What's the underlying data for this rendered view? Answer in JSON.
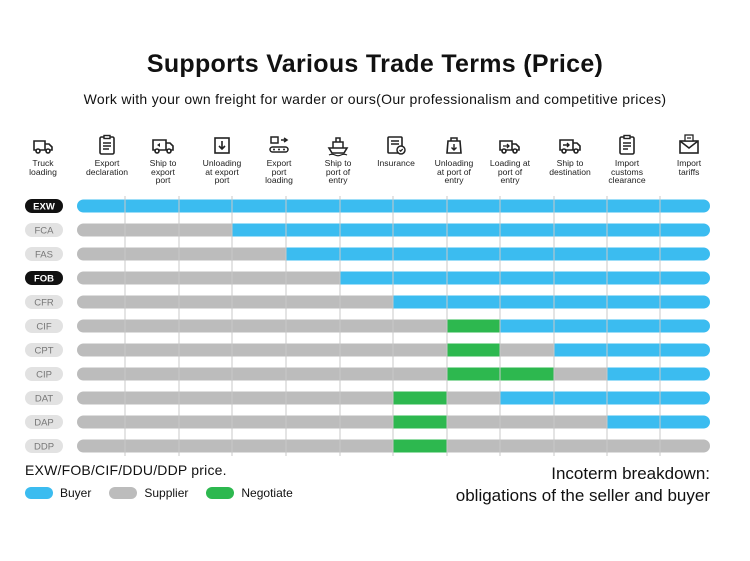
{
  "title": "Supports Various Trade Terms (Price)",
  "subtitle": "Work with your own freight for warder or ours(Our professionalism and competitive prices)",
  "colors": {
    "buyer": "#3bbcf0",
    "supplier": "#bcbcbc",
    "negotiate": "#2db84f",
    "tag_bg": "#e2e2e2",
    "tag_active": "#111111"
  },
  "stages": [
    {
      "icon": "truck-icon",
      "label": "Truck\nloading"
    },
    {
      "icon": "clipboard-icon",
      "label": "Export\ndeclaration"
    },
    {
      "icon": "delivery-truck-icon",
      "label": "Ship to\nexport\nport"
    },
    {
      "icon": "unload-box-icon",
      "label": "Unloading\nat export\nport"
    },
    {
      "icon": "conveyor-icon",
      "label": "Export\nport\nloading"
    },
    {
      "icon": "ship-icon",
      "label": "Ship to\nport of\nentry"
    },
    {
      "icon": "insurance-icon",
      "label": "Insurance"
    },
    {
      "icon": "unload-bag-icon",
      "label": "Unloading\nat port of\nentry"
    },
    {
      "icon": "loading-truck-icon",
      "label": "Loading at\nport of\nentry"
    },
    {
      "icon": "destination-truck-icon",
      "label": "Ship to\ndestination"
    },
    {
      "icon": "customs-clipboard-icon",
      "label": "Import\ncustoms\nclearance"
    },
    {
      "icon": "tax-envelope-icon",
      "label": "Import\ntariffs"
    }
  ],
  "chart_data": {
    "type": "table",
    "title": "Supports Various Trade Terms (Price)",
    "stages": [
      "Truck loading",
      "Export declaration",
      "Ship to export port",
      "Unloading at export port",
      "Export port loading",
      "Ship to port of entry",
      "Insurance",
      "Unloading at port of entry",
      "Loading at port of entry",
      "Ship to destination",
      "Import customs clearance",
      "Import tariffs"
    ],
    "legend": [
      {
        "key": "B",
        "name": "Buyer"
      },
      {
        "key": "S",
        "name": "Supplier"
      },
      {
        "key": "N",
        "name": "Negotiate"
      }
    ],
    "terms": [
      {
        "name": "EXW",
        "highlight": true,
        "cells": [
          "B",
          "B",
          "B",
          "B",
          "B",
          "B",
          "B",
          "B",
          "B",
          "B",
          "B",
          "B"
        ]
      },
      {
        "name": "FCA",
        "highlight": false,
        "cells": [
          "S",
          "S",
          "S",
          "B",
          "B",
          "B",
          "B",
          "B",
          "B",
          "B",
          "B",
          "B"
        ]
      },
      {
        "name": "FAS",
        "highlight": false,
        "cells": [
          "S",
          "S",
          "S",
          "S",
          "B",
          "B",
          "B",
          "B",
          "B",
          "B",
          "B",
          "B"
        ]
      },
      {
        "name": "FOB",
        "highlight": true,
        "cells": [
          "S",
          "S",
          "S",
          "S",
          "S",
          "B",
          "B",
          "B",
          "B",
          "B",
          "B",
          "B"
        ]
      },
      {
        "name": "CFR",
        "highlight": false,
        "cells": [
          "S",
          "S",
          "S",
          "S",
          "S",
          "S",
          "B",
          "B",
          "B",
          "B",
          "B",
          "B"
        ]
      },
      {
        "name": "CIF",
        "highlight": false,
        "cells": [
          "S",
          "S",
          "S",
          "S",
          "S",
          "S",
          "S",
          "N",
          "B",
          "B",
          "B",
          "B"
        ]
      },
      {
        "name": "CPT",
        "highlight": false,
        "cells": [
          "S",
          "S",
          "S",
          "S",
          "S",
          "S",
          "S",
          "N",
          "S",
          "B",
          "B",
          "B"
        ]
      },
      {
        "name": "CIP",
        "highlight": false,
        "cells": [
          "S",
          "S",
          "S",
          "S",
          "S",
          "S",
          "S",
          "N",
          "N",
          "S",
          "B",
          "B"
        ]
      },
      {
        "name": "DAT",
        "highlight": false,
        "cells": [
          "S",
          "S",
          "S",
          "S",
          "S",
          "S",
          "N",
          "S",
          "B",
          "B",
          "B",
          "B"
        ]
      },
      {
        "name": "DAP",
        "highlight": false,
        "cells": [
          "S",
          "S",
          "S",
          "S",
          "S",
          "S",
          "N",
          "S",
          "S",
          "S",
          "B",
          "B"
        ]
      },
      {
        "name": "DDP",
        "highlight": false,
        "cells": [
          "S",
          "S",
          "S",
          "S",
          "S",
          "S",
          "N",
          "S",
          "S",
          "S",
          "S",
          "S"
        ]
      }
    ]
  },
  "note": "EXW/FOB/CIF/DDU/DDP price.",
  "legend_labels": {
    "buyer": "Buyer",
    "supplier": "Supplier",
    "negotiate": "Negotiate"
  },
  "breakdown": {
    "line1": "Incoterm breakdown:",
    "line2": "obligations of the seller and buyer"
  }
}
